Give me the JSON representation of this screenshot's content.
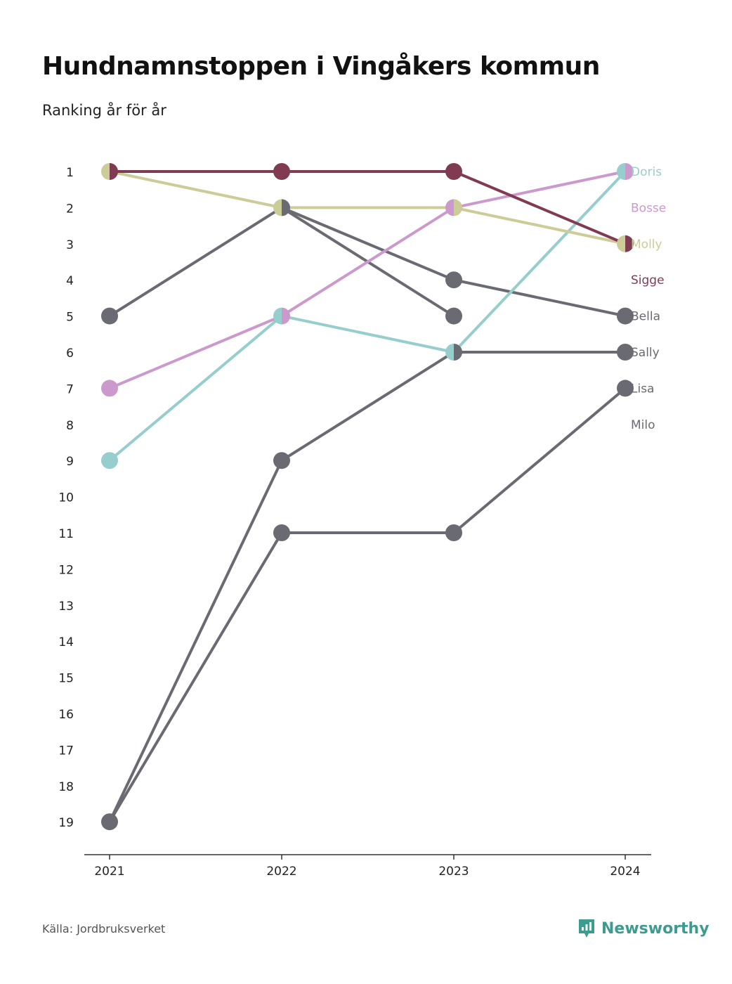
{
  "title": "Hundnamnstoppen i Vingåkers kommun",
  "subtitle": "Ranking år för år",
  "footer": {
    "source": "Källa: Jordbruksverket",
    "brand": "Newsworthy"
  },
  "colors": {
    "brand": "#3d9b8f",
    "axis": "#333333",
    "text": "#222222"
  },
  "chart_data": {
    "type": "line",
    "title": "Hundnamnstoppen i Vingåkers kommun",
    "subtitle": "Ranking år för år",
    "x": [
      "2021",
      "2022",
      "2023",
      "2024"
    ],
    "ylim": [
      1,
      19
    ],
    "y_inverted": true,
    "y_ticks": [
      "1",
      "2",
      "3",
      "4",
      "5",
      "6",
      "7",
      "8",
      "9",
      "10",
      "11",
      "12",
      "13",
      "14",
      "15",
      "16",
      "17",
      "18",
      "19"
    ],
    "series": [
      {
        "name": "Doris",
        "color": "#96cdcd",
        "values": [
          9,
          5,
          6,
          1
        ]
      },
      {
        "name": "Bosse",
        "color": "#cc99cc",
        "values": [
          7,
          5,
          2,
          1
        ]
      },
      {
        "name": "Molly",
        "color": "#cccc99",
        "values": [
          1,
          2,
          2,
          3
        ]
      },
      {
        "name": "Sigge",
        "color": "#803b53",
        "values": [
          1,
          1,
          1,
          3
        ]
      },
      {
        "name": "Bella",
        "color": "#6a6a72",
        "values": [
          5,
          2,
          4,
          5
        ]
      },
      {
        "name": "Sally",
        "color": "#6a6a72",
        "values": [
          19,
          9,
          6,
          6
        ]
      },
      {
        "name": "Lisa",
        "color": "#6a6a72",
        "values": [
          19,
          11,
          11,
          7
        ]
      },
      {
        "name": "Milo",
        "color": "#6a6a72",
        "values": [
          null,
          2,
          5,
          null
        ]
      }
    ],
    "end_labels": [
      {
        "name": "Doris",
        "rank": 1
      },
      {
        "name": "Bosse",
        "rank": 2
      },
      {
        "name": "Molly",
        "rank": 3
      },
      {
        "name": "Sigge",
        "rank": 4
      },
      {
        "name": "Bella",
        "rank": 5
      },
      {
        "name": "Sally",
        "rank": 6
      },
      {
        "name": "Lisa",
        "rank": 7
      },
      {
        "name": "Milo",
        "rank": 8
      }
    ],
    "grid": false,
    "legend": "right (end labels)"
  }
}
